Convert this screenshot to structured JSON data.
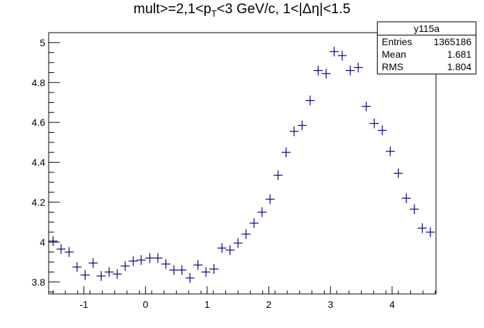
{
  "title": {
    "pre": "mult>=2,1<p",
    "sub": "T",
    "post": "<3 GeV/c, 1<|Δη|<1.5"
  },
  "stats": {
    "name": "y115a",
    "rows": [
      {
        "label": "Entries",
        "value": "1365186"
      },
      {
        "label": "Mean",
        "value": "1.681"
      },
      {
        "label": "RMS",
        "value": "1.804"
      }
    ]
  },
  "chart_data": {
    "type": "scatter",
    "marker": "cross",
    "color": "#000080",
    "xlim": [
      -1.571,
      4.712
    ],
    "ylim": [
      3.74,
      5.05
    ],
    "x_ticks": [
      -1,
      0,
      1,
      2,
      3,
      4
    ],
    "y_ticks": [
      3.8,
      4,
      4.2,
      4.4,
      4.6,
      4.8,
      5
    ],
    "x_tick_labels": [
      "-1",
      "0",
      "1",
      "2",
      "3",
      "4"
    ],
    "y_tick_labels": [
      "3.8",
      "4",
      "4.2",
      "4.4",
      "4.6",
      "4.8",
      "5"
    ],
    "x": [
      -1.5,
      -1.37,
      -1.24,
      -1.11,
      -0.98,
      -0.85,
      -0.72,
      -0.59,
      -0.46,
      -0.33,
      -0.2,
      -0.07,
      0.07,
      0.2,
      0.33,
      0.46,
      0.59,
      0.72,
      0.85,
      0.98,
      1.11,
      1.24,
      1.37,
      1.5,
      1.63,
      1.76,
      1.89,
      2.02,
      2.15,
      2.28,
      2.41,
      2.54,
      2.67,
      2.8,
      2.93,
      3.06,
      3.19,
      3.32,
      3.45,
      3.58,
      3.71,
      3.84,
      3.97,
      4.1,
      4.23,
      4.36,
      4.49,
      4.62
    ],
    "y": [
      4.005,
      3.965,
      3.95,
      3.875,
      3.835,
      3.895,
      3.83,
      3.85,
      3.84,
      3.88,
      3.905,
      3.91,
      3.92,
      3.92,
      3.89,
      3.86,
      3.86,
      3.82,
      3.885,
      3.85,
      3.865,
      3.97,
      3.96,
      3.995,
      4.04,
      4.095,
      4.15,
      4.215,
      4.335,
      4.45,
      4.555,
      4.585,
      4.71,
      4.86,
      4.845,
      4.955,
      4.935,
      4.86,
      4.875,
      4.68,
      4.595,
      4.56,
      4.455,
      4.345,
      4.22,
      4.165,
      4.07,
      4.05
    ]
  }
}
